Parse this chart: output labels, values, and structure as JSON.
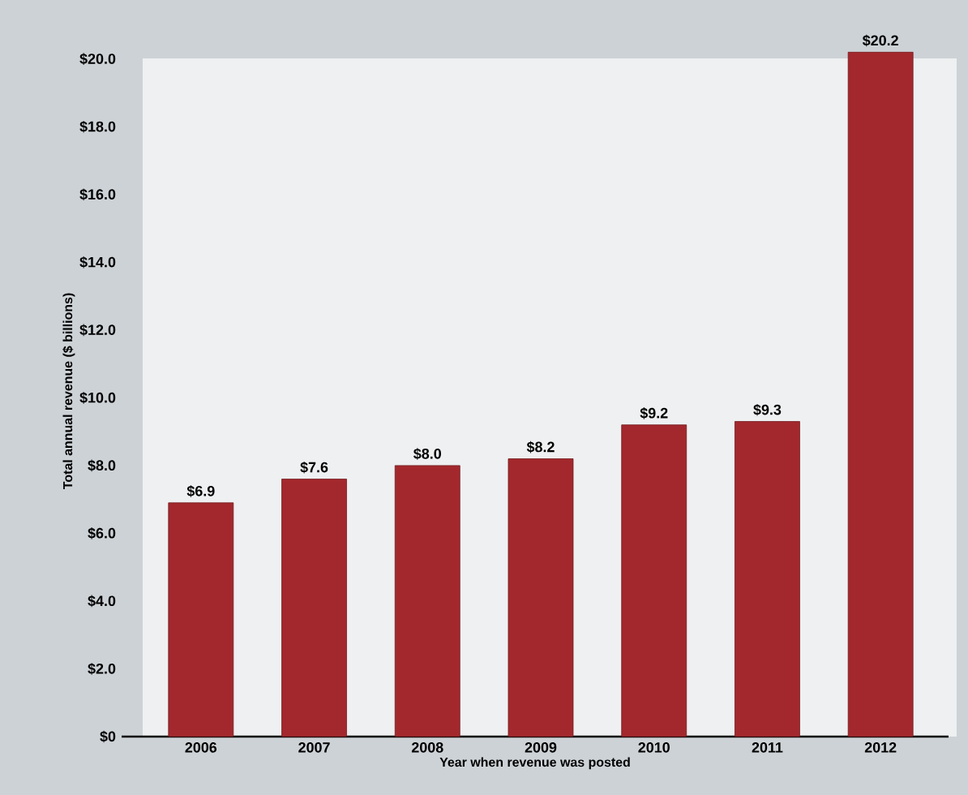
{
  "chart_data": {
    "type": "bar",
    "xlabel": "Year when revenue was posted",
    "ylabel": "Total annual revenue ($ billions)",
    "categories": [
      "2006",
      "2007",
      "2008",
      "2009",
      "2010",
      "2011",
      "2012"
    ],
    "values": [
      6.9,
      7.6,
      8.0,
      8.2,
      9.2,
      9.3,
      20.2
    ],
    "value_labels": [
      "$6.9",
      "$7.6",
      "$8.0",
      "$8.2",
      "$9.2",
      "$9.3",
      "$20.2"
    ],
    "color": "#a3282d",
    "ylim": [
      0,
      20.4
    ],
    "yticks": [
      {
        "value": 0,
        "label": "$0"
      },
      {
        "value": 2,
        "label": "$2.0"
      },
      {
        "value": 4,
        "label": "$4.0"
      },
      {
        "value": 6,
        "label": "$6.0"
      },
      {
        "value": 8,
        "label": "$8.0"
      },
      {
        "value": 10,
        "label": "$10.0"
      },
      {
        "value": 12,
        "label": "$12.0"
      },
      {
        "value": 14,
        "label": "$14.0"
      },
      {
        "value": 16,
        "label": "$16.0"
      },
      {
        "value": 18,
        "label": "$18.0"
      },
      {
        "value": 20,
        "label": "$20.0"
      }
    ],
    "grid": false
  }
}
